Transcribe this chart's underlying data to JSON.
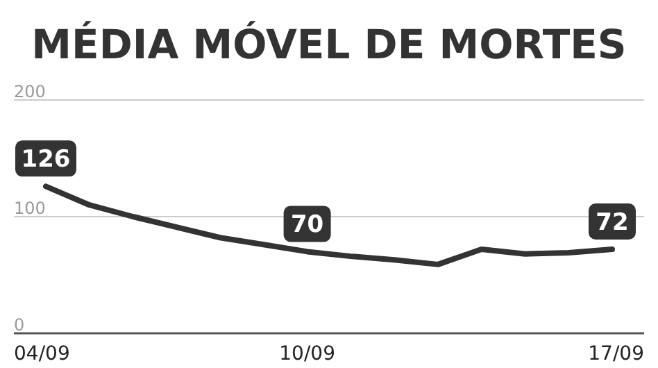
{
  "chart_data": {
    "type": "line",
    "title": "MÉDIA MÓVEL DE MORTES",
    "categories": [
      "04/09",
      null,
      null,
      null,
      null,
      null,
      "10/09",
      null,
      null,
      null,
      null,
      null,
      null,
      "17/09"
    ],
    "series": [
      {
        "color": "#333333",
        "values": [
          126,
          110,
          100,
          91,
          82,
          76,
          70,
          66,
          63,
          59,
          72,
          68,
          69,
          72
        ],
        "value_labels": [
          "126",
          null,
          null,
          null,
          null,
          null,
          "70",
          null,
          null,
          null,
          null,
          null,
          null,
          "72"
        ]
      }
    ],
    "ylim": [
      0,
      200
    ],
    "yticks": [
      0,
      100,
      200
    ],
    "grid": "y",
    "marker": "none",
    "line_style": "solid"
  }
}
